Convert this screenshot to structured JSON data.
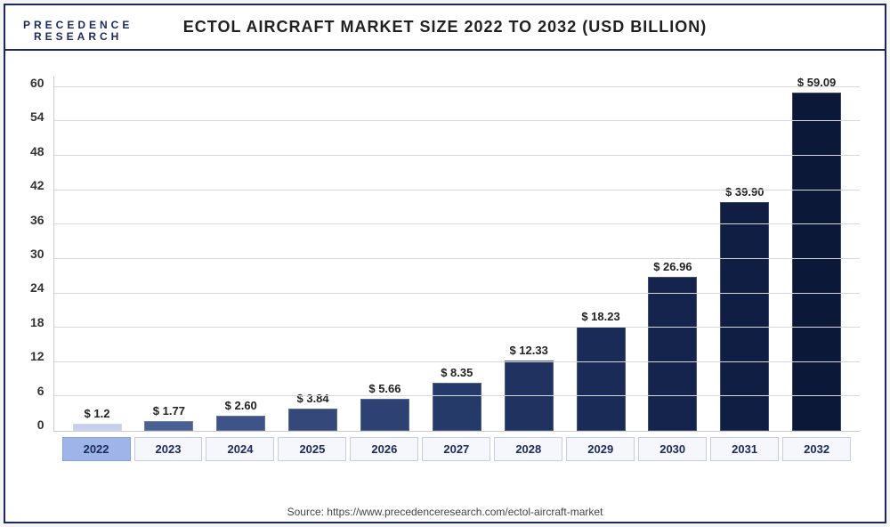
{
  "brand": {
    "line1": "PRECEDENCE",
    "line2": "RESEARCH"
  },
  "chart": {
    "type": "bar",
    "title": "ECTOL AIRCRAFT MARKET SIZE 2022 TO 2032 (USD BILLION)",
    "title_fontsize": 18,
    "title_color": "#202020",
    "categories": [
      "2022",
      "2023",
      "2024",
      "2025",
      "2026",
      "2027",
      "2028",
      "2029",
      "2030",
      "2031",
      "2032"
    ],
    "value_labels": [
      "$ 1.2",
      "$ 1.77",
      "$ 2.60",
      "$ 3.84",
      "$ 5.66",
      "$ 8.35",
      "$ 12.33",
      "$ 18.23",
      "$ 26.96",
      "$ 39.90",
      "$ 59.09"
    ],
    "values": [
      1.2,
      1.77,
      2.6,
      3.84,
      5.66,
      8.35,
      12.33,
      18.23,
      26.96,
      39.9,
      59.09
    ],
    "bar_colors": [
      "#c6d0ec",
      "#4a5f92",
      "#3e5388",
      "#34487a",
      "#2d4172",
      "#263a6a",
      "#1f3260",
      "#192b56",
      "#14244c",
      "#101e44",
      "#0b1838"
    ],
    "highlight_index": 0,
    "ylim": [
      0,
      62
    ],
    "yticks": [
      0,
      6,
      12,
      18,
      24,
      30,
      36,
      42,
      48,
      54,
      60
    ],
    "axis_fontsize": 14,
    "axis_color": "#333333",
    "label_fontsize": 13,
    "label_color": "#222222",
    "background_color": "#ffffff",
    "grid_color": "#d8d8d8",
    "frame_border_color": "#1a2a5e",
    "bar_width": 0.68
  },
  "source": "Source: https://www.precedenceresearch.com/ectol-aircraft-market"
}
